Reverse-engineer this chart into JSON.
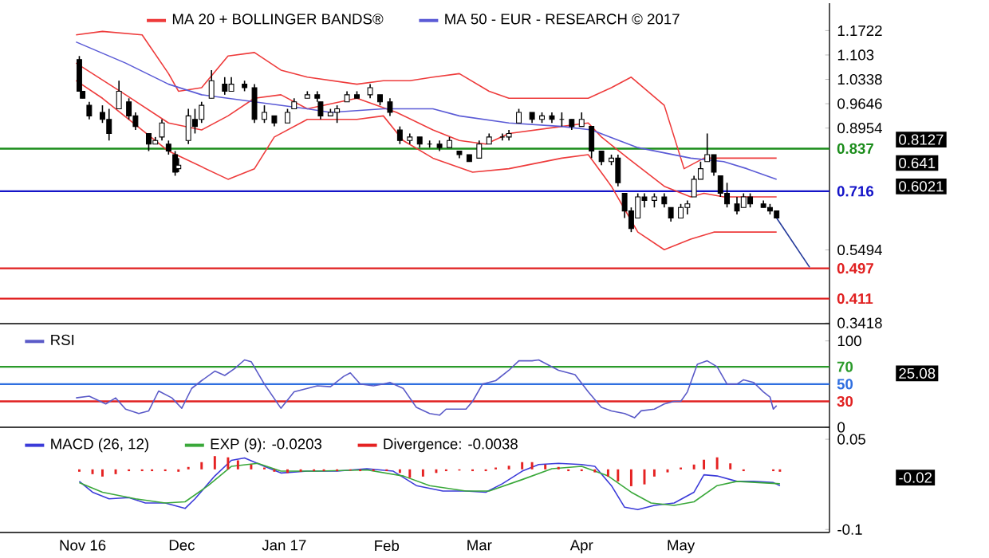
{
  "chart_data": [
    {
      "type": "candlestick",
      "legend": "top",
      "tick_labels": "y",
      "xlim": [
        "2016-10-07",
        "2017-06-15"
      ],
      "ylim": [
        0.34,
        1.25
      ],
      "yticks": [
        1.1722,
        1.103,
        1.0338,
        0.9646,
        0.8954,
        0.5494,
        0.3418
      ],
      "x": [
        "2016-10-31",
        "2016-11-01",
        "2016-11-03",
        "2016-11-07",
        "2016-11-09",
        "2016-11-12",
        "2016-11-15",
        "2016-11-17",
        "2016-11-21",
        "2016-11-23",
        "2016-11-25",
        "2016-11-27",
        "2016-11-29",
        "2016-11-30",
        "2016-12-03",
        "2016-12-05",
        "2016-12-07",
        "2016-12-10",
        "2016-12-14",
        "2016-12-16",
        "2016-12-20",
        "2016-12-23",
        "2016-12-26",
        "2016-12-29",
        "2017-01-02",
        "2017-01-04",
        "2017-01-08",
        "2017-01-11",
        "2017-01-12",
        "2017-01-15",
        "2017-01-17",
        "2017-01-20",
        "2017-01-23",
        "2017-01-27",
        "2017-01-30",
        "2017-02-02",
        "2017-02-05",
        "2017-02-08",
        "2017-02-11",
        "2017-02-14",
        "2017-02-17",
        "2017-02-20",
        "2017-02-23",
        "2017-02-26",
        "2017-03-01",
        "2017-03-04",
        "2017-03-08",
        "2017-03-10",
        "2017-03-13",
        "2017-03-17",
        "2017-03-20",
        "2017-03-23",
        "2017-03-26",
        "2017-03-29",
        "2017-04-01",
        "2017-04-04",
        "2017-04-07",
        "2017-04-10",
        "2017-04-12",
        "2017-04-14",
        "2017-04-16",
        "2017-04-18",
        "2017-04-20",
        "2017-04-23",
        "2017-04-26",
        "2017-04-28",
        "2017-05-01",
        "2017-05-03",
        "2017-05-05",
        "2017-05-07",
        "2017-05-09",
        "2017-05-11",
        "2017-05-13",
        "2017-05-15",
        "2017-05-18",
        "2017-05-20",
        "2017-05-22",
        "2017-05-26",
        "2017-05-28",
        "2017-05-30"
      ],
      "ohlc": [
        [
          1.09,
          1.1,
          1.0,
          1.0
        ],
        [
          1.0,
          1.0,
          0.98,
          0.98
        ],
        [
          0.96,
          0.97,
          0.92,
          0.93
        ],
        [
          0.94,
          0.96,
          0.91,
          0.92
        ],
        [
          0.92,
          0.95,
          0.86,
          0.88
        ],
        [
          0.95,
          1.03,
          0.95,
          1.0
        ],
        [
          0.97,
          0.98,
          0.92,
          0.93
        ],
        [
          0.93,
          0.94,
          0.89,
          0.9
        ],
        [
          0.88,
          0.88,
          0.83,
          0.85
        ],
        [
          0.85,
          0.87,
          0.85,
          0.86
        ],
        [
          0.87,
          0.92,
          0.86,
          0.91
        ],
        [
          0.85,
          0.86,
          0.82,
          0.83
        ],
        [
          0.82,
          0.83,
          0.76,
          0.77
        ],
        [
          0.78,
          0.81,
          0.77,
          0.79
        ],
        [
          0.86,
          0.95,
          0.85,
          0.93
        ],
        [
          0.92,
          0.95,
          0.88,
          0.9
        ],
        [
          0.92,
          0.97,
          0.91,
          0.96
        ],
        [
          0.98,
          1.06,
          0.98,
          1.03
        ],
        [
          1.02,
          1.04,
          0.99,
          1.0
        ],
        [
          1.0,
          1.04,
          1.0,
          1.02
        ],
        [
          1.02,
          1.03,
          1.0,
          1.01
        ],
        [
          1.01,
          1.02,
          0.91,
          0.92
        ],
        [
          0.92,
          0.96,
          0.91,
          0.94
        ],
        [
          0.93,
          0.93,
          0.9,
          0.91
        ],
        [
          0.91,
          0.95,
          0.91,
          0.94
        ],
        [
          0.95,
          0.98,
          0.95,
          0.97
        ],
        [
          0.98,
          1.0,
          0.98,
          0.99
        ],
        [
          0.99,
          1.0,
          0.97,
          0.98
        ],
        [
          0.97,
          0.97,
          0.92,
          0.93
        ],
        [
          0.93,
          0.95,
          0.93,
          0.94
        ],
        [
          0.94,
          0.96,
          0.91,
          0.95
        ],
        [
          0.97,
          1.0,
          0.97,
          0.99
        ],
        [
          0.99,
          1.0,
          0.98,
          0.98
        ],
        [
          0.99,
          1.02,
          0.98,
          1.01
        ],
        [
          0.99,
          0.99,
          0.96,
          0.97
        ],
        [
          0.97,
          0.98,
          0.93,
          0.94
        ],
        [
          0.89,
          0.9,
          0.85,
          0.86
        ],
        [
          0.86,
          0.88,
          0.85,
          0.87
        ],
        [
          0.87,
          0.87,
          0.84,
          0.85
        ],
        [
          0.85,
          0.86,
          0.84,
          0.85
        ],
        [
          0.85,
          0.86,
          0.83,
          0.84
        ],
        [
          0.84,
          0.87,
          0.84,
          0.86
        ],
        [
          0.83,
          0.83,
          0.81,
          0.82
        ],
        [
          0.82,
          0.82,
          0.8,
          0.8
        ],
        [
          0.81,
          0.86,
          0.81,
          0.85
        ],
        [
          0.85,
          0.88,
          0.85,
          0.87
        ],
        [
          0.87,
          0.88,
          0.86,
          0.87
        ],
        [
          0.87,
          0.89,
          0.86,
          0.88
        ],
        [
          0.91,
          0.95,
          0.91,
          0.94
        ],
        [
          0.94,
          0.94,
          0.91,
          0.92
        ],
        [
          0.92,
          0.94,
          0.91,
          0.93
        ],
        [
          0.93,
          0.94,
          0.91,
          0.92
        ],
        [
          0.92,
          0.94,
          0.9,
          0.92
        ],
        [
          0.92,
          0.92,
          0.89,
          0.9
        ],
        [
          0.9,
          0.94,
          0.9,
          0.92
        ],
        [
          0.9,
          0.9,
          0.81,
          0.83
        ],
        [
          0.83,
          0.83,
          0.79,
          0.8
        ],
        [
          0.8,
          0.82,
          0.79,
          0.81
        ],
        [
          0.81,
          0.82,
          0.73,
          0.74
        ],
        [
          0.71,
          0.71,
          0.64,
          0.66
        ],
        [
          0.66,
          0.67,
          0.6,
          0.61
        ],
        [
          0.64,
          0.71,
          0.64,
          0.7
        ],
        [
          0.7,
          0.71,
          0.67,
          0.69
        ],
        [
          0.69,
          0.71,
          0.67,
          0.7
        ],
        [
          0.7,
          0.71,
          0.67,
          0.68
        ],
        [
          0.67,
          0.67,
          0.63,
          0.64
        ],
        [
          0.64,
          0.68,
          0.64,
          0.67
        ],
        [
          0.67,
          0.69,
          0.65,
          0.68
        ],
        [
          0.7,
          0.76,
          0.7,
          0.75
        ],
        [
          0.75,
          0.8,
          0.75,
          0.78
        ],
        [
          0.8,
          0.88,
          0.8,
          0.82
        ],
        [
          0.82,
          0.82,
          0.76,
          0.77
        ],
        [
          0.76,
          0.76,
          0.7,
          0.71
        ],
        [
          0.71,
          0.74,
          0.67,
          0.68
        ],
        [
          0.68,
          0.7,
          0.65,
          0.66
        ],
        [
          0.67,
          0.71,
          0.67,
          0.7
        ],
        [
          0.7,
          0.71,
          0.67,
          0.68
        ],
        [
          0.68,
          0.69,
          0.67,
          0.67
        ],
        [
          0.67,
          0.68,
          0.65,
          0.66
        ],
        [
          0.66,
          0.66,
          0.64,
          0.64
        ]
      ],
      "series": [
        {
          "type": "line",
          "color": "#ee3b3b",
          "x": [
            "2016-10-30",
            "2016-11-07",
            "2016-11-19",
            "2016-11-27",
            "2016-11-30",
            "2016-12-07",
            "2016-12-15",
            "2016-12-23",
            "2016-12-31",
            "2017-01-08",
            "2017-01-23",
            "2017-01-31",
            "2017-02-08",
            "2017-02-15",
            "2017-02-23",
            "2017-03-04",
            "2017-03-10",
            "2017-04-03",
            "2017-04-10",
            "2017-04-16",
            "2017-04-26",
            "2017-05-02",
            "2017-05-08",
            "2017-05-30"
          ],
          "values": [
            1.16,
            1.17,
            1.16,
            1.05,
            1.0,
            1.01,
            1.1,
            1.11,
            1.06,
            1.04,
            1.02,
            1.03,
            1.03,
            1.04,
            1.05,
            1.0,
            0.98,
            0.98,
            1.01,
            1.04,
            0.96,
            0.78,
            0.81,
            0.81
          ]
        },
        {
          "type": "line",
          "name": "MA 20 + BOLLINGER BANDS®",
          "color": "#ee3b3b",
          "x": [
            "2016-10-30",
            "2016-11-14",
            "2016-11-27",
            "2016-12-07",
            "2016-12-15",
            "2016-12-23",
            "2016-12-31",
            "2017-01-08",
            "2017-01-23",
            "2017-02-04",
            "2017-02-15",
            "2017-02-23",
            "2017-03-03",
            "2017-03-10",
            "2017-03-26",
            "2017-04-03",
            "2017-04-07",
            "2017-04-15",
            "2017-04-26",
            "2017-05-04",
            "2017-05-08",
            "2017-05-14",
            "2017-05-30"
          ],
          "values": [
            1.08,
            0.99,
            0.91,
            0.89,
            0.93,
            0.98,
            0.99,
            0.95,
            0.98,
            0.94,
            0.89,
            0.86,
            0.85,
            0.88,
            0.9,
            0.91,
            0.87,
            0.81,
            0.73,
            0.7,
            0.71,
            0.7,
            0.7
          ]
        },
        {
          "type": "line",
          "color": "#ee3b3b",
          "x": [
            "2016-10-30",
            "2016-11-07",
            "2016-11-27",
            "2016-12-15",
            "2016-12-23",
            "2016-12-29",
            "2017-01-08",
            "2017-01-23",
            "2017-01-31",
            "2017-02-06",
            "2017-02-15",
            "2017-02-27",
            "2017-03-10",
            "2017-03-26",
            "2017-04-03",
            "2017-04-10",
            "2017-04-18",
            "2017-04-26",
            "2017-05-04",
            "2017-05-11",
            "2017-05-30"
          ],
          "values": [
            1.03,
            0.98,
            0.83,
            0.75,
            0.78,
            0.87,
            0.92,
            0.92,
            0.93,
            0.86,
            0.81,
            0.77,
            0.78,
            0.81,
            0.82,
            0.73,
            0.6,
            0.55,
            0.58,
            0.6,
            0.6
          ]
        },
        {
          "type": "line",
          "name": "MA 50 - EUR - RESEARCH © 2017",
          "color": "#5b5bd6",
          "x": [
            "2016-10-30",
            "2016-11-14",
            "2016-11-27",
            "2016-12-07",
            "2016-12-23",
            "2017-01-08",
            "2017-01-15",
            "2017-01-31",
            "2017-02-08",
            "2017-02-15",
            "2017-02-23",
            "2017-03-10",
            "2017-03-26",
            "2017-04-04",
            "2017-04-18",
            "2017-05-04",
            "2017-05-14",
            "2017-05-21",
            "2017-05-30"
          ],
          "values": [
            1.14,
            1.08,
            1.02,
            0.99,
            0.97,
            0.95,
            0.94,
            0.95,
            0.95,
            0.95,
            0.93,
            0.91,
            0.9,
            0.89,
            0.84,
            0.81,
            0.8,
            0.78,
            0.75
          ]
        },
        {
          "type": "line",
          "color": "#23399a",
          "x": [
            "2017-05-30",
            "2017-06-09"
          ],
          "values": [
            0.64,
            0.5
          ]
        }
      ],
      "ref_lines": [
        {
          "axis": "y",
          "value": 0.837,
          "label": "0.837",
          "color": "#1a8c1a"
        },
        {
          "axis": "y",
          "value": 0.716,
          "label": "0.716",
          "color": "#1414c8"
        },
        {
          "axis": "y",
          "value": 0.497,
          "label": "0.497",
          "color": "#e02020"
        },
        {
          "axis": "y",
          "value": 0.411,
          "label": "0.411",
          "color": "#e02020"
        }
      ],
      "annotations": [
        "0.8127",
        "0.641",
        "0.6021"
      ]
    },
    {
      "type": "line",
      "legend": "top left",
      "tick_labels": "y",
      "xlim": [
        "2016-10-07",
        "2017-06-15"
      ],
      "ylim": [
        0,
        120
      ],
      "yticks": [
        100,
        0
      ],
      "series": [
        {
          "name": "RSI",
          "color": "#5a5ac8",
          "x": [
            "2016-10-30",
            "2016-11-03",
            "2016-11-08",
            "2016-11-11",
            "2016-11-14",
            "2016-11-18",
            "2016-11-21",
            "2016-11-24",
            "2016-11-28",
            "2016-12-01",
            "2016-12-04",
            "2016-12-07",
            "2016-12-11",
            "2016-12-14",
            "2016-12-17",
            "2016-12-20",
            "2016-12-22",
            "2016-12-26",
            "2016-12-31",
            "2017-01-04",
            "2017-01-08",
            "2017-01-11",
            "2017-01-15",
            "2017-01-19",
            "2017-01-21",
            "2017-01-24",
            "2017-01-28",
            "2017-01-31",
            "2017-02-02",
            "2017-02-06",
            "2017-02-10",
            "2017-02-14",
            "2017-02-17",
            "2017-02-19",
            "2017-02-25",
            "2017-02-27",
            "2017-03-02",
            "2017-03-06",
            "2017-03-10",
            "2017-03-13",
            "2017-03-17",
            "2017-03-19",
            "2017-03-25",
            "2017-03-30",
            "2017-04-03",
            "2017-04-07",
            "2017-04-10",
            "2017-04-14",
            "2017-04-17",
            "2017-04-19",
            "2017-04-23",
            "2017-04-26",
            "2017-04-29",
            "2017-05-01",
            "2017-05-03",
            "2017-05-06",
            "2017-05-09",
            "2017-05-12",
            "2017-05-15",
            "2017-05-18",
            "2017-05-20",
            "2017-05-23",
            "2017-05-26",
            "2017-05-28",
            "2017-05-29",
            "2017-05-30"
          ],
          "values": [
            34,
            36,
            27,
            34,
            21,
            16,
            19,
            42,
            34,
            22,
            45,
            54,
            65,
            60,
            68,
            78,
            76,
            50,
            22,
            41,
            45,
            48,
            47,
            59,
            63,
            50,
            48,
            50,
            52,
            45,
            23,
            16,
            14,
            21,
            21,
            30,
            50,
            54,
            66,
            77,
            77,
            78,
            66,
            61,
            41,
            23,
            19,
            16,
            11,
            19,
            21,
            27,
            30,
            30,
            41,
            73,
            77,
            70,
            50,
            50,
            55,
            52,
            41,
            35,
            21,
            25
          ]
        }
      ],
      "ref_lines": [
        {
          "axis": "y",
          "value": 70,
          "label": "70",
          "color": "#2a9a2a"
        },
        {
          "axis": "y",
          "value": 50,
          "label": "50",
          "color": "#2f6fe0"
        },
        {
          "axis": "y",
          "value": 30,
          "label": "30",
          "color": "#e02020"
        }
      ],
      "annotations": [
        "25.08"
      ]
    },
    {
      "type": "line",
      "legend": "top left",
      "xlim": [
        "2016-10-07",
        "2017-06-15"
      ],
      "xticks": [
        {
          "value": "2016-11-01",
          "label": "Nov 16"
        },
        {
          "value": "2016-12-01",
          "label": "Dec"
        },
        {
          "value": "2017-01-01",
          "label": "Jan 17"
        },
        {
          "value": "2017-02-01",
          "label": "Feb"
        },
        {
          "value": "2017-03-01",
          "label": "Mar"
        },
        {
          "value": "2017-04-01",
          "label": "Apr"
        },
        {
          "value": "2017-05-01",
          "label": "May"
        }
      ],
      "ylim": [
        -0.105,
        0.07
      ],
      "yticks": [
        0.05,
        -0.1
      ],
      "series": [
        {
          "name": "MACD (26, 12)",
          "color": "#3b3bd9",
          "x": [
            "2016-10-31",
            "2016-11-04",
            "2016-11-09",
            "2016-11-15",
            "2016-11-20",
            "2016-11-26",
            "2016-12-02",
            "2016-12-05",
            "2016-12-11",
            "2016-12-16",
            "2016-12-20",
            "2016-12-26",
            "2016-12-31",
            "2017-01-08",
            "2017-01-17",
            "2017-01-26",
            "2017-02-03",
            "2017-02-10",
            "2017-02-18",
            "2017-02-25",
            "2017-03-03",
            "2017-03-08",
            "2017-03-14",
            "2017-03-19",
            "2017-03-25",
            "2017-04-01",
            "2017-04-05",
            "2017-04-10",
            "2017-04-14",
            "2017-04-18",
            "2017-04-23",
            "2017-04-29",
            "2017-05-05",
            "2017-05-08",
            "2017-05-12",
            "2017-05-18",
            "2017-05-23",
            "2017-05-29",
            "2017-05-31"
          ],
          "values": [
            -0.02,
            -0.038,
            -0.049,
            -0.047,
            -0.056,
            -0.056,
            -0.065,
            -0.049,
            -0.011,
            0.015,
            0.019,
            0.005,
            -0.006,
            -0.003,
            -0.003,
            0.001,
            -0.003,
            -0.027,
            -0.036,
            -0.036,
            -0.038,
            -0.024,
            -0.003,
            0.008,
            0.01,
            0.008,
            0.005,
            -0.027,
            -0.063,
            -0.067,
            -0.06,
            -0.056,
            -0.038,
            -0.009,
            -0.011,
            -0.02,
            -0.02,
            -0.022,
            -0.027
          ]
        },
        {
          "name": "EXP (9): -0.0203",
          "color": "#3aa83a",
          "x": [
            "2016-10-31",
            "2016-11-07",
            "2016-11-17",
            "2016-11-26",
            "2016-12-02",
            "2016-12-09",
            "2016-12-16",
            "2016-12-24",
            "2016-12-31",
            "2017-01-11",
            "2017-01-26",
            "2017-02-06",
            "2017-02-14",
            "2017-02-25",
            "2017-03-04",
            "2017-03-14",
            "2017-03-23",
            "2017-04-01",
            "2017-04-09",
            "2017-04-16",
            "2017-04-22",
            "2017-04-29",
            "2017-05-05",
            "2017-05-12",
            "2017-05-18",
            "2017-05-31"
          ],
          "values": [
            -0.022,
            -0.038,
            -0.049,
            -0.056,
            -0.054,
            -0.027,
            0.005,
            0.01,
            -0.003,
            -0.003,
            -0.001,
            -0.011,
            -0.027,
            -0.036,
            -0.036,
            -0.017,
            0.001,
            0.005,
            -0.011,
            -0.038,
            -0.056,
            -0.06,
            -0.054,
            -0.027,
            -0.02,
            -0.024
          ]
        },
        {
          "type": "bar",
          "name": "Divergence: -0.0038",
          "color": "#e52222",
          "x": [
            "2016-10-31",
            "2016-11-04",
            "2016-11-07",
            "2016-11-11",
            "2016-11-15",
            "2016-11-19",
            "2016-11-22",
            "2016-11-26",
            "2016-11-30",
            "2016-12-03",
            "2016-12-07",
            "2016-12-11",
            "2016-12-15",
            "2016-12-18",
            "2016-12-22",
            "2016-12-26",
            "2016-12-29",
            "2017-01-02",
            "2017-01-06",
            "2017-01-10",
            "2017-01-13",
            "2017-01-17",
            "2017-01-21",
            "2017-01-24",
            "2017-01-28",
            "2017-02-01",
            "2017-02-05",
            "2017-02-08",
            "2017-02-12",
            "2017-02-16",
            "2017-02-19",
            "2017-02-23",
            "2017-02-27",
            "2017-03-03",
            "2017-03-06",
            "2017-03-10",
            "2017-03-14",
            "2017-03-17",
            "2017-03-21",
            "2017-03-25",
            "2017-03-28",
            "2017-04-01",
            "2017-04-05",
            "2017-04-09",
            "2017-04-12",
            "2017-04-16",
            "2017-04-20",
            "2017-04-23",
            "2017-04-27",
            "2017-05-01",
            "2017-05-05",
            "2017-05-08",
            "2017-05-12",
            "2017-05-16",
            "2017-05-20",
            "2017-05-29",
            "2017-05-31"
          ],
          "values": [
            -0.004,
            -0.008,
            -0.012,
            -0.008,
            -0.003,
            -0.003,
            -0.003,
            -0.003,
            -0.004,
            0.004,
            0.012,
            0.022,
            0.02,
            0.015,
            0.008,
            0.003,
            -0.004,
            -0.006,
            -0.004,
            -0.003,
            -0.003,
            -0.003,
            -0.002,
            -0.003,
            -0.003,
            -0.003,
            -0.006,
            -0.014,
            -0.012,
            -0.006,
            -0.003,
            -0.002,
            -0.003,
            -0.003,
            0.003,
            0.006,
            0.012,
            0.012,
            0.008,
            0.004,
            -0.003,
            -0.003,
            -0.005,
            -0.012,
            -0.02,
            -0.028,
            -0.025,
            -0.012,
            -0.005,
            0.003,
            0.008,
            0.016,
            0.02,
            0.01,
            -0.003,
            -0.003,
            -0.004
          ]
        }
      ],
      "annotations": [
        "-0.02"
      ]
    }
  ]
}
